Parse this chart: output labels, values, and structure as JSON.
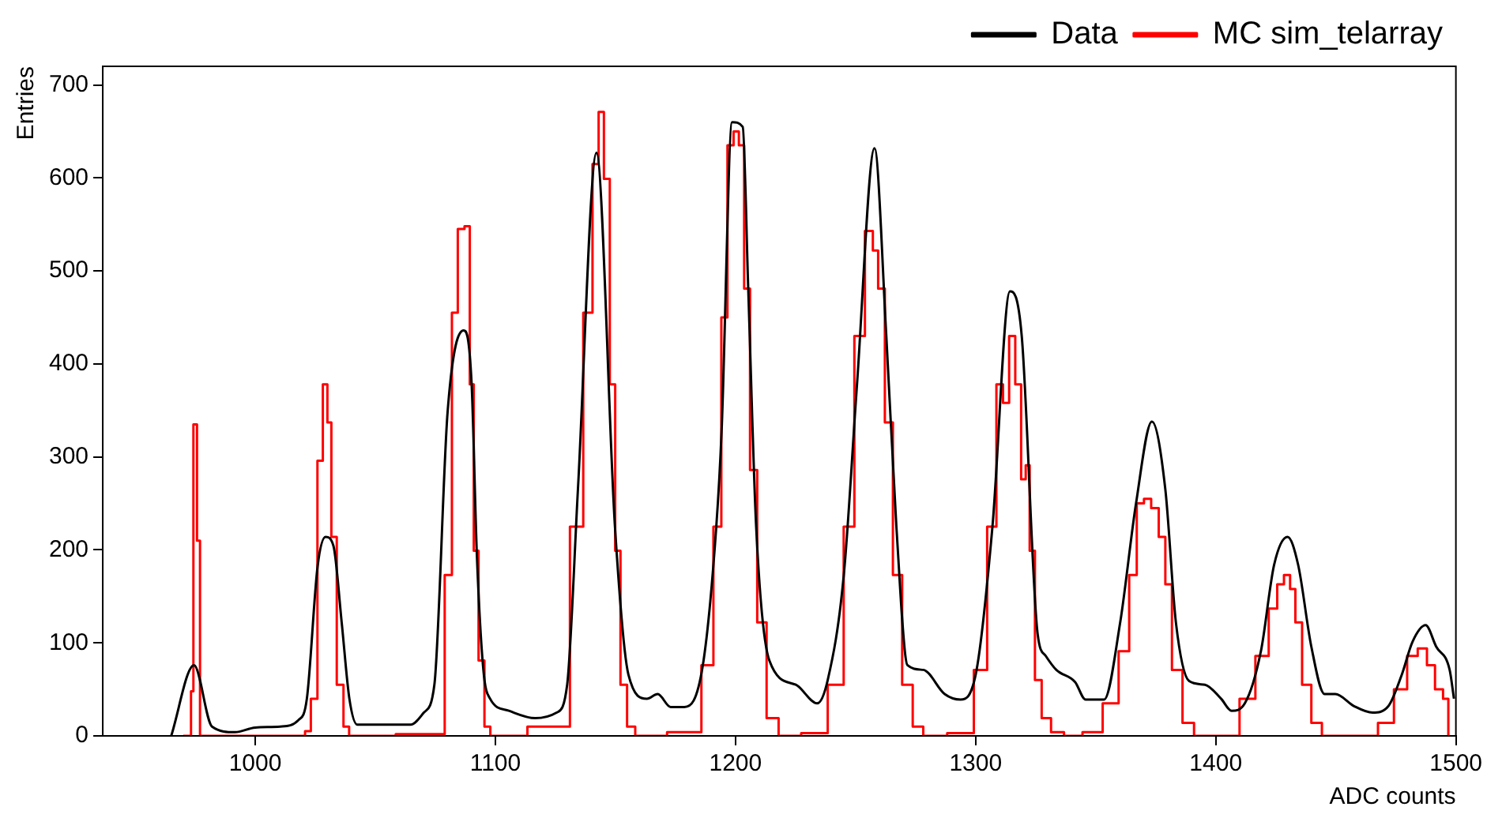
{
  "chart_data": {
    "type": "line",
    "xlabel": "ADC counts",
    "ylabel": "Entries",
    "xlim": [
      936.5,
      1500
    ],
    "ylim": [
      0,
      720
    ],
    "xticks": [
      1000,
      1100,
      1200,
      1300,
      1400,
      1500
    ],
    "yticks": [
      0,
      100,
      200,
      300,
      400,
      500,
      600,
      700
    ],
    "grid": false,
    "legend": "top right",
    "marker": "none",
    "series": [
      {
        "name": "Data",
        "color": "#000000",
        "x": [
          965,
          974.5,
          982,
          991.6,
          1000,
          1010.4,
          1018,
          1021.5,
          1026,
          1029.3,
          1032.6,
          1036,
          1039.2,
          1042.5,
          1064.7,
          1070.2,
          1074.6,
          1080.1,
          1086.8,
          1090.1,
          1092.3,
          1095,
          1097.8,
          1105.6,
          1116.6,
          1125.5,
          1129.9,
          1134.4,
          1142.1,
          1149.8,
          1155.4,
          1163.1,
          1167.6,
          1173,
          1178.7,
          1186.4,
          1192,
          1194.2,
          1198.6,
          1203,
          1205.3,
          1208.6,
          1214.1,
          1225.1,
          1234,
          1238.4,
          1245.1,
          1250.6,
          1257.9,
          1262.8,
          1267,
          1271.6,
          1278.2,
          1287.1,
          1293.7,
          1300.4,
          1307,
          1314.3,
          1319.2,
          1325.8,
          1329.2,
          1333.6,
          1341.4,
          1345.8,
          1353.5,
          1360.2,
          1366.8,
          1373.4,
          1379,
          1383.4,
          1388.9,
          1395.5,
          1402.2,
          1406.6,
          1412.1,
          1418.8,
          1424.3,
          1429.9,
          1434.3,
          1439.8,
          1445.3,
          1449.8,
          1457.6,
          1465.3,
          1471.9,
          1477.5,
          1481.9,
          1487.4,
          1491.8,
          1497.4,
          1499.2
        ],
        "values": [
          0,
          76,
          10,
          4,
          9,
          10,
          17,
          40,
          183,
          214,
          204,
          122,
          40,
          12,
          12,
          25,
          55,
          348,
          436,
          379,
          194,
          71,
          40,
          27,
          19,
          25,
          55,
          266,
          627,
          225,
          66,
          40,
          45,
          31,
          31,
          76,
          225,
          327,
          660,
          655,
          481,
          225,
          81,
          55,
          35,
          60,
          173,
          378,
          632,
          430,
          225,
          76,
          71,
          45,
          39,
          71,
          225,
          478,
          430,
          110,
          86,
          71,
          58,
          39,
          39,
          122,
          250,
          338,
          265,
          122,
          59,
          55,
          40,
          27,
          35,
          91,
          184,
          214,
          184,
          96,
          45,
          45,
          32,
          25,
          32,
          66,
          101,
          119,
          96,
          71,
          40
        ]
      },
      {
        "name": "MC sim_telarray",
        "color": "#ff0000",
        "type": "step",
        "x": [
          970,
          973,
          973.5,
          975,
          976.5,
          977.5,
          1020,
          1021.5,
          1024.8,
          1027,
          1029.3,
          1030.8,
          1032.6,
          1035.3,
          1038.2,
          1040,
          1077,
          1080.8,
          1083,
          1085.7,
          1088.6,
          1090.1,
          1091.9,
          1094.1,
          1096.8,
          1099,
          1127.7,
          1134.4,
          1138.8,
          1142.1,
          1143.9,
          1146.5,
          1148.8,
          1151,
          1153.2,
          1156.5,
          1160,
          1183,
          1188.6,
          1193,
          1195.2,
          1198.1,
          1200.3,
          1202.5,
          1204.7,
          1207.4,
          1210.7,
          1215.2,
          1220.7,
          1234,
          1242.8,
          1247.3,
          1251.7,
          1256.1,
          1258.3,
          1260.5,
          1263.9,
          1267.2,
          1271.6,
          1276,
          1280.4,
          1295.9,
          1302.6,
          1307,
          1310.3,
          1312.5,
          1315.4,
          1317.6,
          1320.3,
          1321.4,
          1323.6,
          1325.8,
          1329.2,
          1333.6,
          1340,
          1349,
          1356.8,
          1362.3,
          1365.6,
          1368.6,
          1371.6,
          1374.6,
          1377.9,
          1380.1,
          1383.4,
          1388.9,
          1393,
          1406.6,
          1413.2,
          1419.8,
          1424.3,
          1426.9,
          1429.9,
          1432,
          1434.3,
          1437.6,
          1442,
          1446.4,
          1464.2,
          1470.9,
          1477.5,
          1481.9,
          1486.3,
          1489.6,
          1493,
          1496.3,
          1497.4
        ],
        "values": [
          0,
          0,
          48,
          335,
          210,
          0,
          0,
          5,
          40,
          296,
          378,
          337,
          214,
          55,
          10,
          0,
          2,
          173,
          455,
          545,
          548,
          378,
          199,
          81,
          10,
          0,
          10,
          225,
          455,
          615,
          671,
          599,
          378,
          199,
          55,
          10,
          0,
          4,
          76,
          225,
          450,
          635,
          650,
          635,
          481,
          286,
          122,
          19,
          0,
          3,
          55,
          225,
          430,
          543,
          522,
          481,
          337,
          173,
          55,
          10,
          0,
          3,
          71,
          225,
          378,
          358,
          430,
          378,
          276,
          291,
          199,
          60,
          19,
          4,
          0,
          4,
          35,
          91,
          173,
          250,
          255,
          245,
          214,
          163,
          71,
          14,
          0,
          0,
          40,
          86,
          137,
          163,
          173,
          158,
          122,
          55,
          14,
          0,
          0,
          14,
          50,
          86,
          94,
          76,
          50,
          40,
          0
        ]
      }
    ]
  }
}
